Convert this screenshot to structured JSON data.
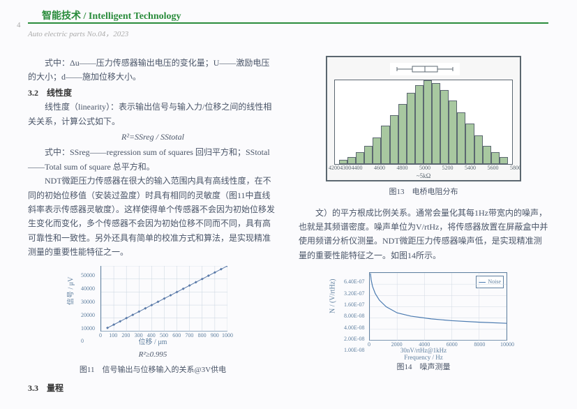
{
  "header": {
    "title": "智能技术 / Intelligent Technology",
    "page_number": "4",
    "meta": "Auto electric parts  No.04，2023"
  },
  "left_col": {
    "p1": "式中：Δu——压力传感器输出电压的变化量；U——激励电压的大小；d——施加位移大小。",
    "sec_3_2": "3.2　线性度",
    "p2": "线性度（linearity）：表示输出信号与输入力/位移之间的线性相关关系，计算公式如下。",
    "formula1": "R²=SSreg / SStotal",
    "p3": "式中：SSreg——regression sum of squares 回归平方和；SStotal——Total sum of square 总平方和。",
    "p4": "NDT微距压力传感器在很大的输入范围内具有高线性度，在不同的初始位移值（安装过盈度）时具有相同的灵敏度（图11中直线斜率表示传感器灵敏度）。这样使得单个传感器不会因为初始位移发生变化而变化，多个传感器不会因为初始位移不同而不同，具有高可靠性和一致性。另外还具有简单的校准方式和算法，是实现精准测量的重要性能特征之一。",
    "fig11_r2": "R²≥0.995",
    "fig11_caption": "图11　信号输出与位移输入的关系@3V供电",
    "sec_3_3": "3.3　量程"
  },
  "right_col": {
    "fig13_caption": "图13　电桥电阻分布",
    "p1": "文）的平方根成比例关系。通常会量化其每1Hz带宽内的噪声，也就是其频谱密度。噪声单位为V/rtHz，将传感器放置在屏蔽盒中并使用频谱分析仪测量。NDT微距压力传感器噪声低，是实现精准测量的重要性能特征之一。如图14所示。",
    "fig14_caption": "图14　噪声测量"
  },
  "fig11": {
    "type": "scatter-line",
    "ylabel": "信号 / μV",
    "xlabel": "位移 / μm",
    "yticks": [
      0,
      10000,
      20000,
      30000,
      40000,
      50000
    ],
    "xticks": [
      0,
      100,
      200,
      300,
      400,
      500,
      600,
      700,
      800,
      900,
      1000
    ],
    "points_x": [
      50,
      100,
      150,
      200,
      250,
      300,
      350,
      400,
      450,
      500,
      550,
      600,
      650,
      700,
      750,
      800,
      850,
      900,
      950,
      1000
    ],
    "points_y": [
      2500,
      5000,
      7500,
      10000,
      12500,
      15000,
      17500,
      20000,
      22500,
      25000,
      27500,
      30000,
      32500,
      35000,
      37500,
      40000,
      42500,
      45000,
      47500,
      50000
    ],
    "xlim": [
      0,
      1000
    ],
    "ylim": [
      0,
      50000
    ],
    "line_color": "#5a7aa8",
    "marker_color": "#5a7aa8",
    "marker_style": "diamond",
    "marker_size": 4,
    "grid_color": "#c8d4e0",
    "axis_color": "#6080a0"
  },
  "fig13": {
    "type": "histogram",
    "xlabel": "~5kΩ",
    "xticks": [
      4200,
      4300,
      4400,
      4600,
      4800,
      5000,
      5200,
      5400,
      5600,
      5800
    ],
    "bar_heights_pct": [
      5,
      8,
      14,
      22,
      32,
      46,
      58,
      72,
      85,
      94,
      100,
      97,
      88,
      76,
      62,
      48,
      34,
      22,
      14,
      8
    ],
    "bar_fill": "#a8c8a0",
    "bar_border": "#5b6770",
    "border_color": "#5b6770",
    "background": "#f7f7f7",
    "boxplot": {
      "q1_pct": 32,
      "median_pct": 50,
      "q3_pct": 68,
      "whisker_lo_pct": 10,
      "whisker_hi_pct": 90
    }
  },
  "fig14": {
    "type": "line",
    "ylabel": "N / (V/rtHz)",
    "xlabel_line1": "30nV/rtHz@1kHz",
    "xlabel_line2": "Frequency / Hz",
    "legend": "Noise",
    "yticks": [
      "1.00E-08",
      "2.00E-08",
      "4.00E-08",
      "8.00E-08",
      "1.60E-07",
      "3.20E-07",
      "6.40E-07"
    ],
    "xticks": [
      0,
      2000,
      4000,
      6000,
      8000,
      10000
    ],
    "xlim": [
      0,
      10000
    ],
    "line_color": "#4a7ab0",
    "axis_color": "#6080a0",
    "curve_points": [
      [
        50,
        620
      ],
      [
        100,
        420
      ],
      [
        200,
        280
      ],
      [
        400,
        180
      ],
      [
        700,
        120
      ],
      [
        1200,
        80
      ],
      [
        2000,
        55
      ],
      [
        3000,
        45
      ],
      [
        4500,
        38
      ],
      [
        6000,
        34
      ],
      [
        8000,
        31
      ],
      [
        10000,
        29
      ]
    ]
  }
}
